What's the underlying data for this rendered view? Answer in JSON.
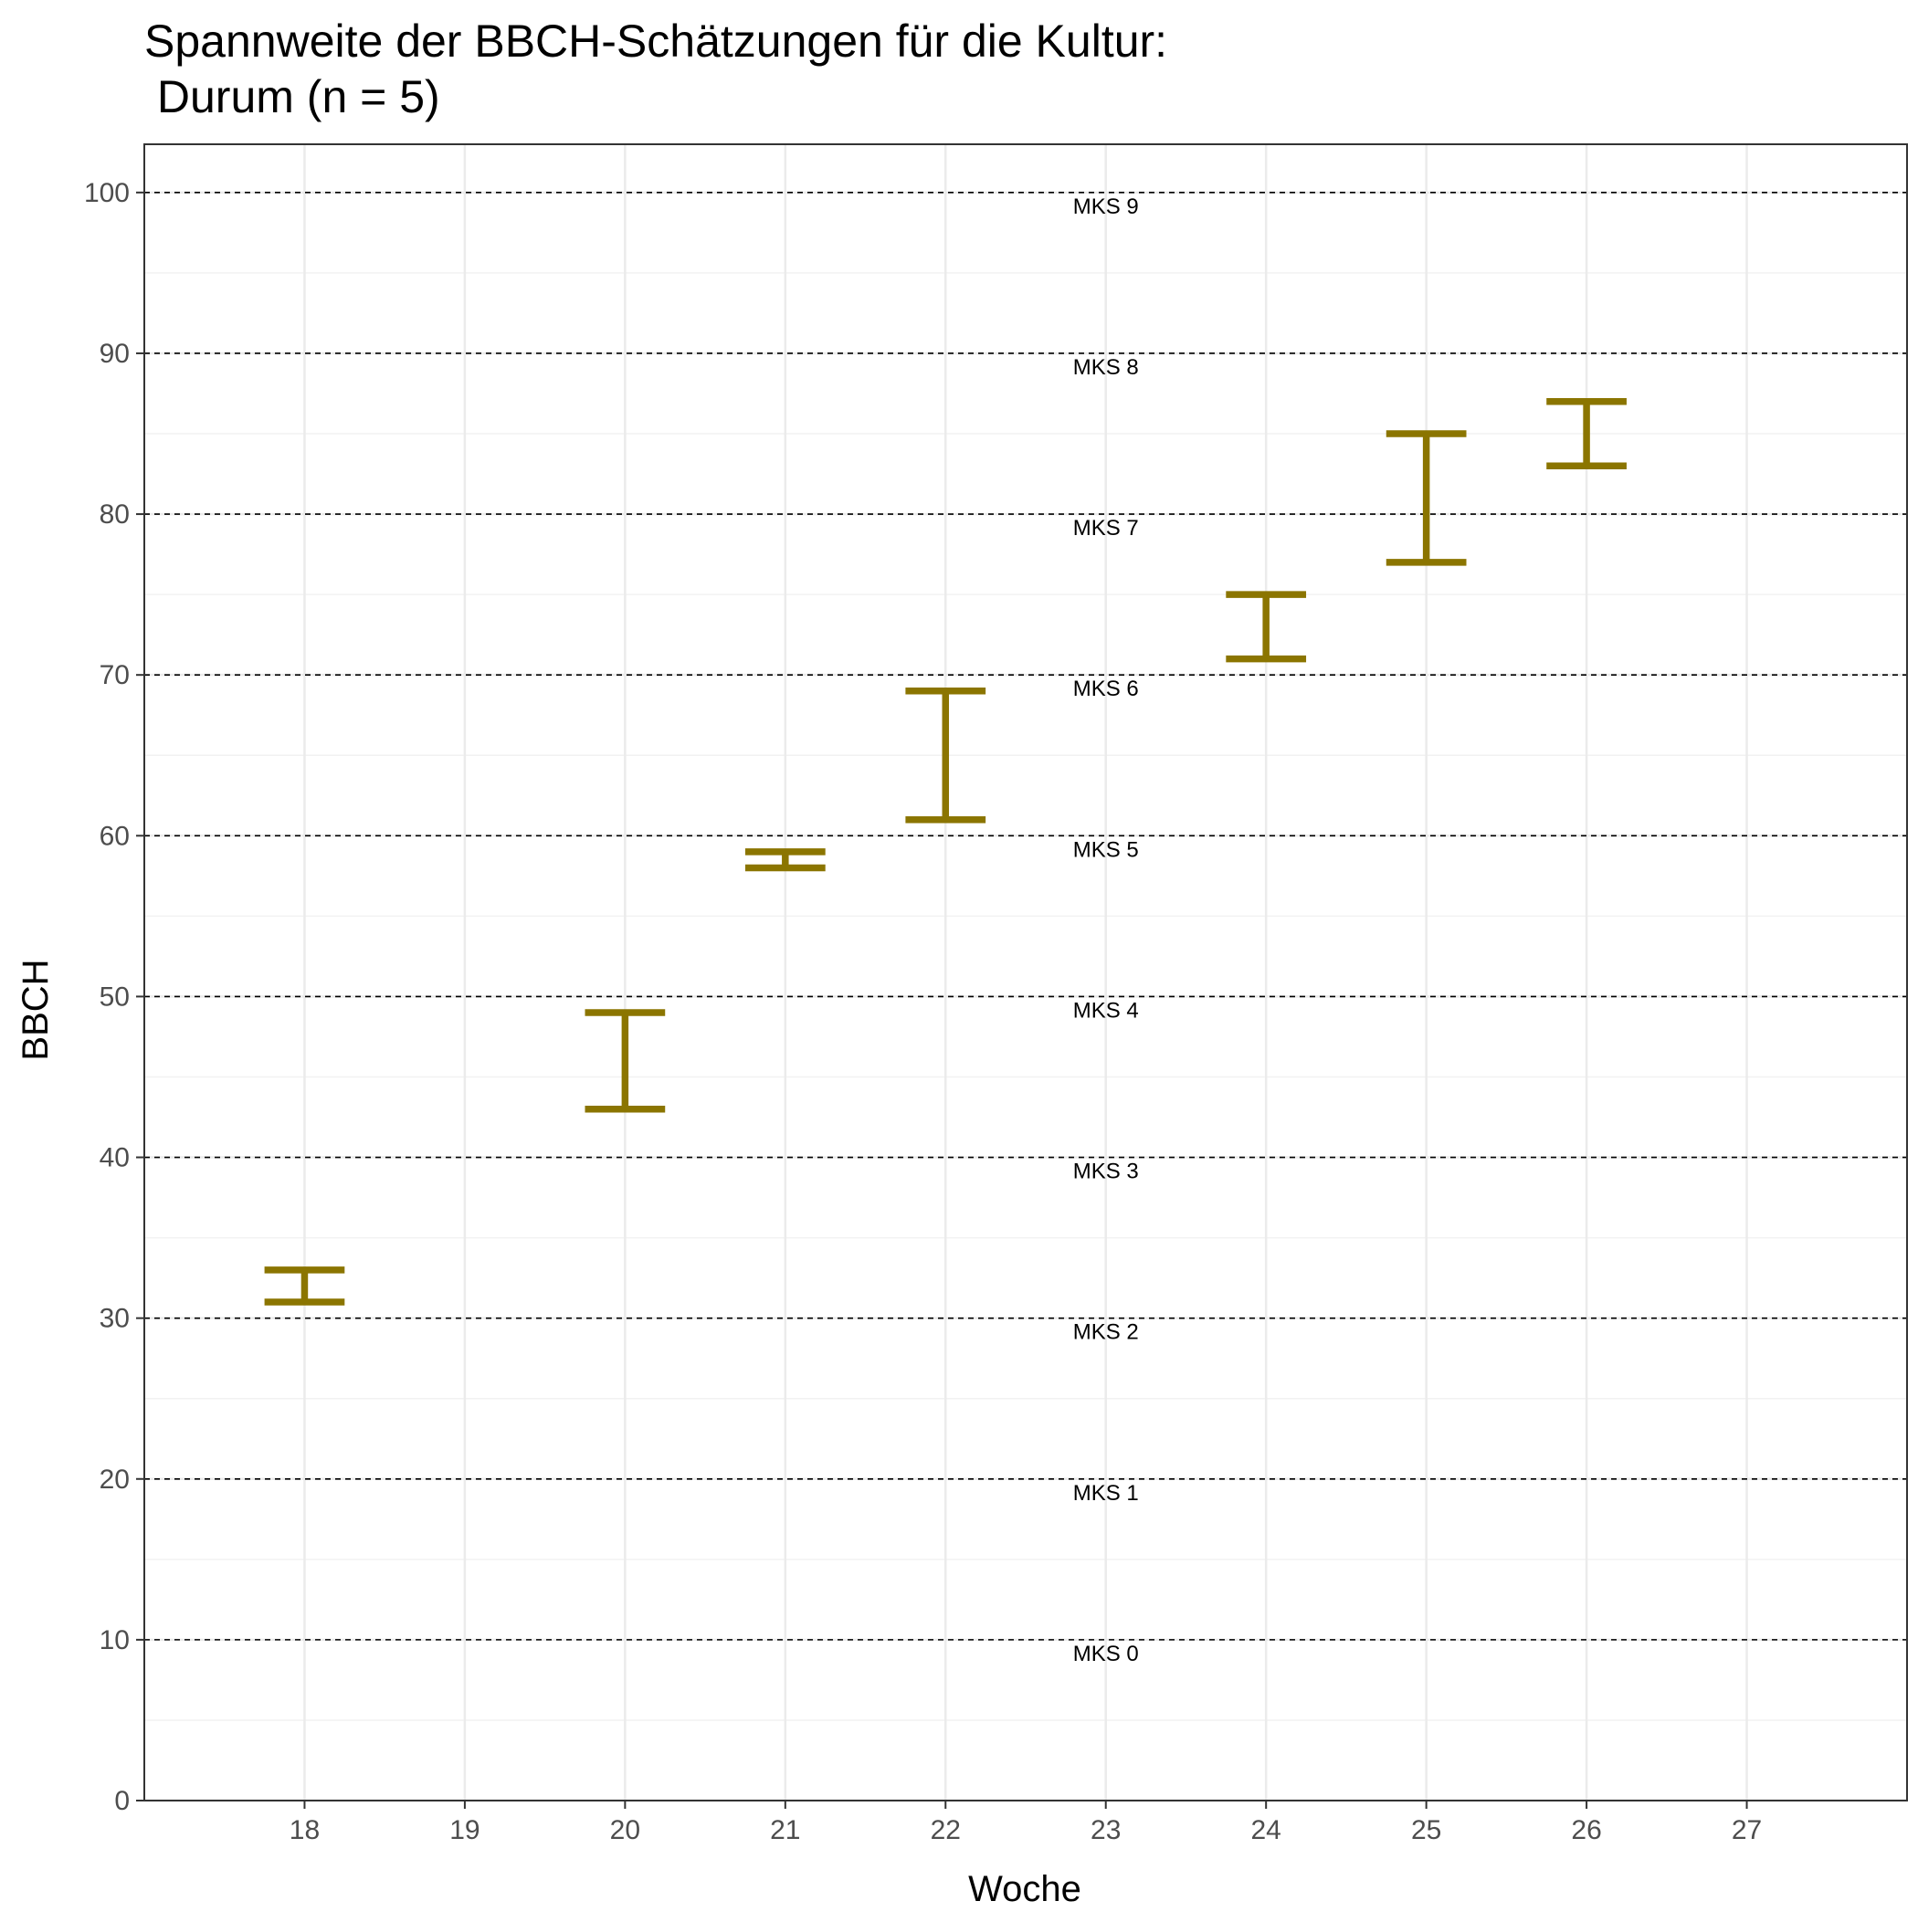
{
  "chart_data": {
    "type": "errorbar",
    "title": "Spannweite der BBCH-Schätzungen für die Kultur:",
    "subtitle": " Durum (n = 5)",
    "xlabel": "Woche",
    "ylabel": "BBCH",
    "xlim": [
      17,
      28
    ],
    "ylim": [
      0,
      103
    ],
    "x_ticks": [
      18,
      19,
      20,
      21,
      22,
      23,
      24,
      25,
      26,
      27
    ],
    "y_ticks": [
      0,
      10,
      20,
      30,
      40,
      50,
      60,
      70,
      80,
      90,
      100
    ],
    "grid": true,
    "color": "#8B7500",
    "series": [
      {
        "points": [
          {
            "x": 18,
            "ymin": 31,
            "ymax": 33
          },
          {
            "x": 20,
            "ymin": 43,
            "ymax": 49
          },
          {
            "x": 21,
            "ymin": 58,
            "ymax": 59
          },
          {
            "x": 22,
            "ymin": 61,
            "ymax": 69
          },
          {
            "x": 24,
            "ymin": 71,
            "ymax": 75
          },
          {
            "x": 25,
            "ymin": 77,
            "ymax": 85
          },
          {
            "x": 26,
            "ymin": 83,
            "ymax": 87
          }
        ]
      }
    ],
    "reference_lines": [
      {
        "y": 10,
        "label": "MKS 0"
      },
      {
        "y": 20,
        "label": "MKS 1"
      },
      {
        "y": 30,
        "label": "MKS 2"
      },
      {
        "y": 40,
        "label": "MKS 3"
      },
      {
        "y": 50,
        "label": "MKS 4"
      },
      {
        "y": 60,
        "label": "MKS 5"
      },
      {
        "y": 70,
        "label": "MKS 6"
      },
      {
        "y": 80,
        "label": "MKS 7"
      },
      {
        "y": 90,
        "label": "MKS 8"
      },
      {
        "y": 100,
        "label": "MKS 9"
      }
    ],
    "reference_label_x": 23
  }
}
